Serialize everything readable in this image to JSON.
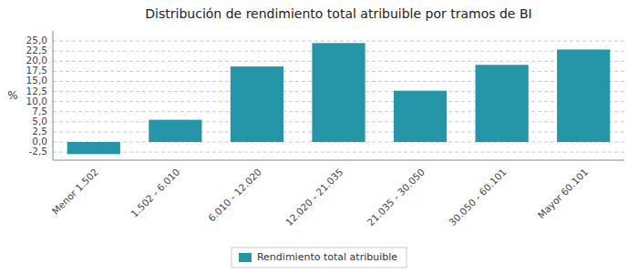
{
  "chart_data": {
    "type": "bar",
    "title": "Distribución de rendimiento total atribuible por tramos de BI",
    "y_label": "%",
    "categories": [
      "Menor 1.502",
      "1.502 - 6.010",
      "6.010 - 12.020",
      "12.020 - 21.035",
      "21.035 - 30.050",
      "30.050 - 60.101",
      "Mayor 60.101"
    ],
    "series": [
      {
        "name": "Rendimiento total atribuible",
        "color": "#2596a8",
        "values": [
          -3.0,
          5.5,
          18.7,
          24.5,
          12.7,
          19.1,
          22.9
        ]
      }
    ],
    "ylim": [
      -4.5,
      27.5
    ],
    "yticks": [
      {
        "value": -2.5,
        "label": "-2,5"
      },
      {
        "value": 0.0,
        "label": "0,0"
      },
      {
        "value": 2.5,
        "label": "2,5"
      },
      {
        "value": 5.0,
        "label": "5,0"
      },
      {
        "value": 7.5,
        "label": "7,5"
      },
      {
        "value": 10.0,
        "label": "10,0"
      },
      {
        "value": 12.5,
        "label": "12,5"
      },
      {
        "value": 15.0,
        "label": "15,0"
      },
      {
        "value": 17.5,
        "label": "17,5"
      },
      {
        "value": 20.0,
        "label": "20,0"
      },
      {
        "value": 22.5,
        "label": "22,5"
      },
      {
        "value": 25.0,
        "label": "25,0"
      }
    ],
    "grid": true,
    "legend": "bottom"
  }
}
